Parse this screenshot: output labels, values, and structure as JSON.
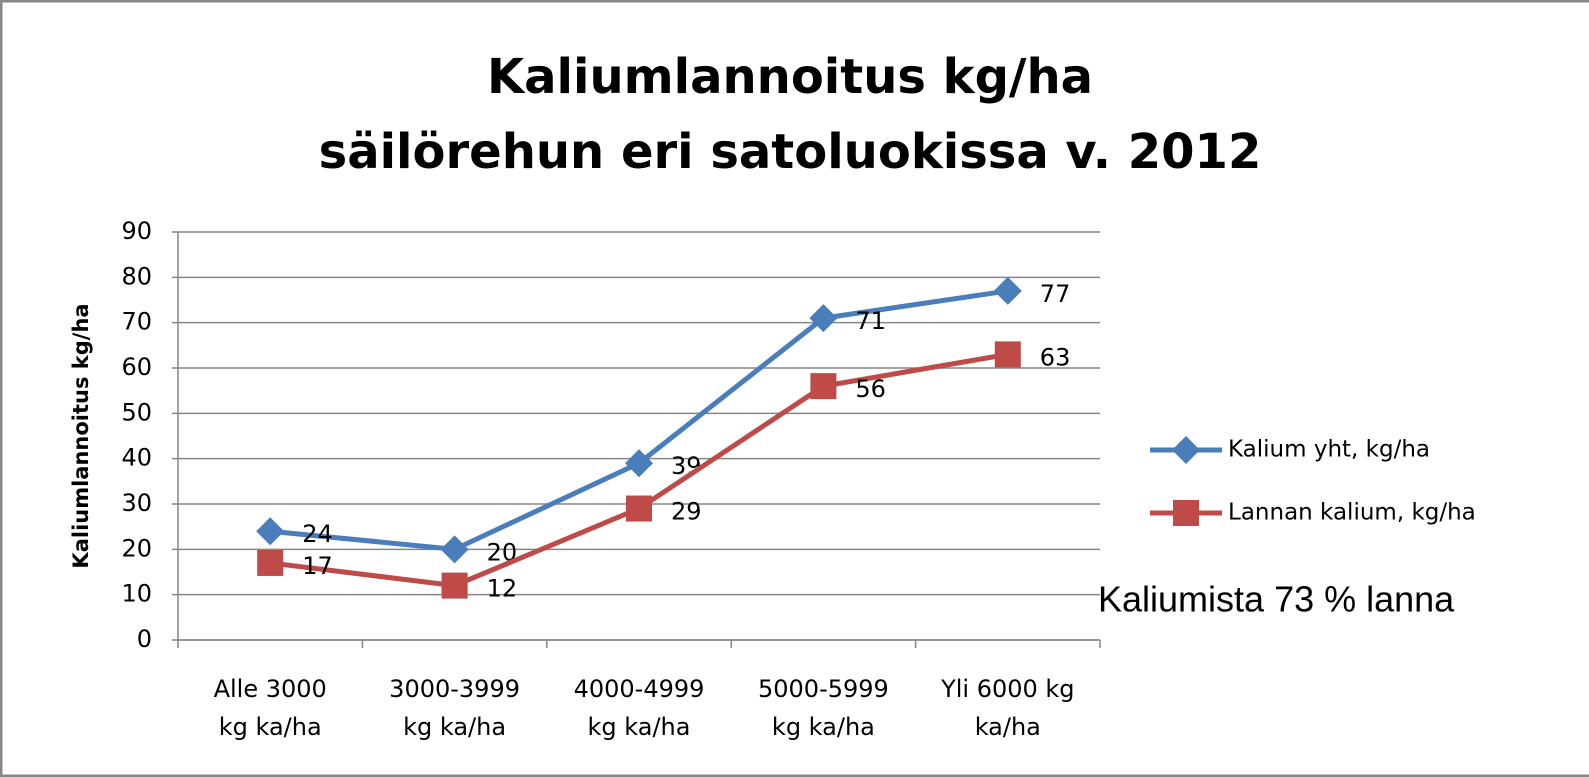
{
  "chart_data": {
    "type": "line",
    "title": "Kaliumlannoitus kg/ha",
    "subtitle": "säilörehun eri satoluokissa v. 2012",
    "y_label": "Kaliumlannoitus  kg/ha",
    "annotation": "Kaliumista 73 % lanna",
    "categories": [
      "Alle 3000 kg ka/ha",
      "3000-3999 kg ka/ha",
      "4000-4999 kg ka/ha",
      "5000-5999 kg ka/ha",
      "Yli 6000 kg ka/ha"
    ],
    "series": [
      {
        "name": "Kalium yht, kg/ha",
        "color": "#4a7ebb",
        "marker": "diamond",
        "values": [
          24,
          20,
          39,
          71,
          77
        ]
      },
      {
        "name": "Lannan kalium, kg/ha",
        "color": "#be4b48",
        "marker": "square",
        "values": [
          17,
          12,
          29,
          56,
          63
        ]
      }
    ],
    "ylim": [
      0,
      90
    ],
    "yticks": [
      0,
      10,
      20,
      30,
      40,
      50,
      60,
      70,
      80,
      90
    ],
    "grid": true,
    "legend": "right"
  }
}
